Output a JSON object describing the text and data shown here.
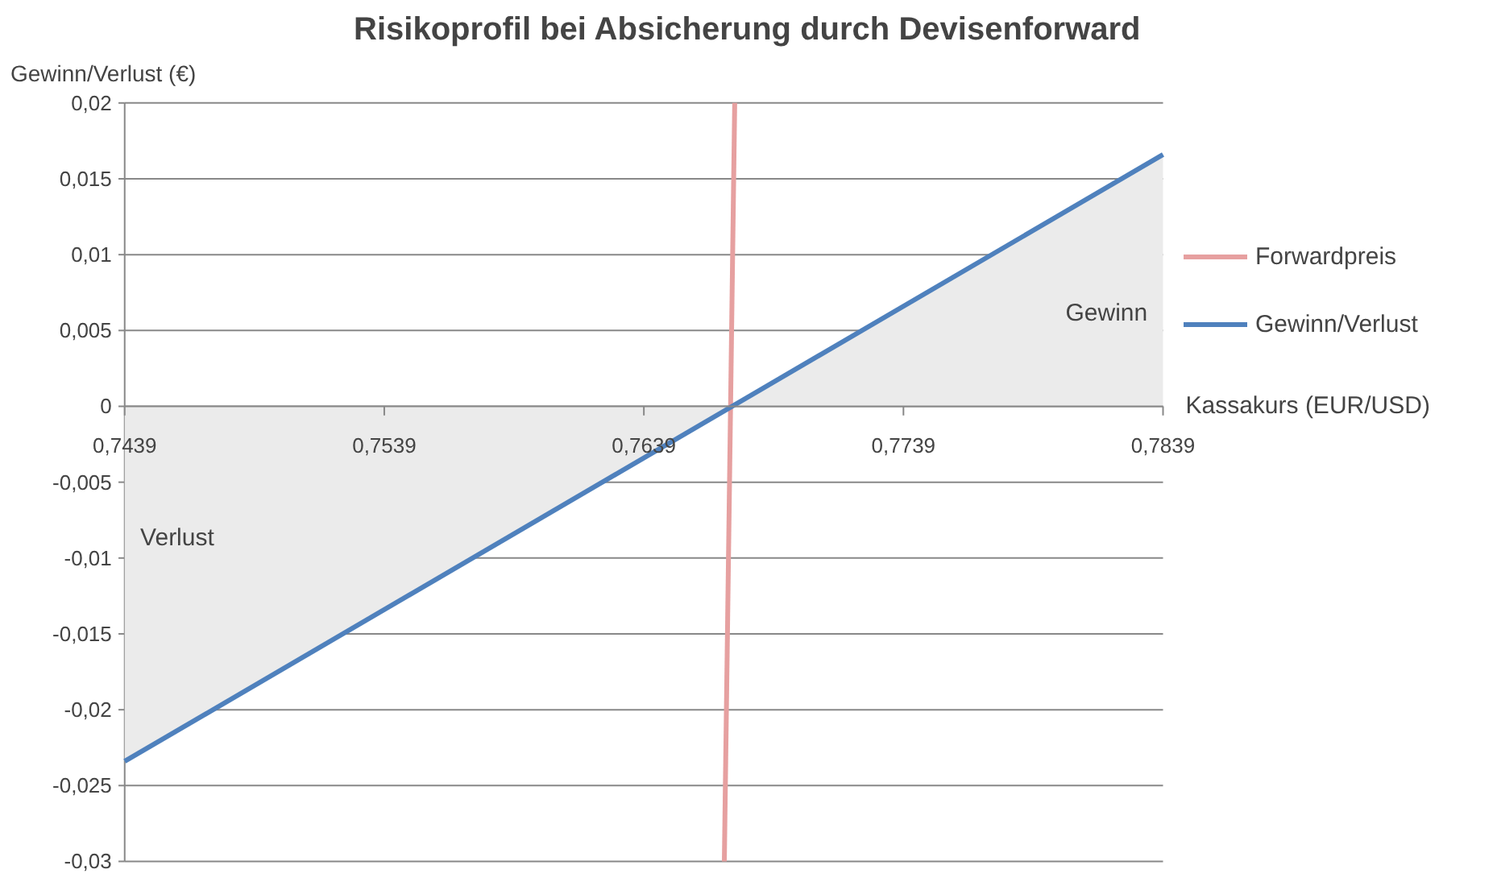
{
  "chart_data": {
    "type": "line",
    "title": "Risikoprofil bei Absicherung durch Devisenforward",
    "xlabel": "Kassakurs (EUR/USD)",
    "ylabel": "Gewinn/Verlust (€)",
    "xlim": [
      0.7439,
      0.7839
    ],
    "ylim": [
      -0.03,
      0.02
    ],
    "xticks": [
      {
        "value": 0.7439,
        "label": "0,7439"
      },
      {
        "value": 0.7539,
        "label": "0,7539"
      },
      {
        "value": 0.7639,
        "label": "0,7639"
      },
      {
        "value": 0.7739,
        "label": "0,7739"
      },
      {
        "value": 0.7839,
        "label": "0,7839"
      }
    ],
    "yticks": [
      {
        "value": -0.03,
        "label": "-0,03"
      },
      {
        "value": -0.025,
        "label": "-0,025"
      },
      {
        "value": -0.02,
        "label": "-0,02"
      },
      {
        "value": -0.015,
        "label": "-0,015"
      },
      {
        "value": -0.01,
        "label": "-0,01"
      },
      {
        "value": -0.005,
        "label": "-0,005"
      },
      {
        "value": 0,
        "label": "0"
      },
      {
        "value": 0.005,
        "label": "0,005"
      },
      {
        "value": 0.01,
        "label": "0,01"
      },
      {
        "value": 0.015,
        "label": "0,015"
      },
      {
        "value": 0.02,
        "label": "0,02"
      }
    ],
    "series": [
      {
        "type": "area",
        "name": "Verlust",
        "color": "#ebebeb",
        "x": [
          0.7439,
          0.7673
        ],
        "values": [
          -0.0234,
          0
        ]
      },
      {
        "type": "area",
        "name": "Gewinn",
        "color": "#ebebeb",
        "x": [
          0.7673,
          0.7839
        ],
        "values": [
          0,
          0.0166
        ]
      },
      {
        "name": "Forwardpreis",
        "color": "#e6a0a0",
        "x": [
          0.767,
          0.7674
        ],
        "values": [
          -0.03,
          0.02
        ]
      },
      {
        "name": "Gewinn/Verlust",
        "color": "#4f81bd",
        "x": [
          0.7439,
          0.7839
        ],
        "values": [
          -0.0234,
          0.0166
        ]
      }
    ],
    "grid": "y",
    "legend": "right",
    "line_style": "solid",
    "marker": "none"
  }
}
